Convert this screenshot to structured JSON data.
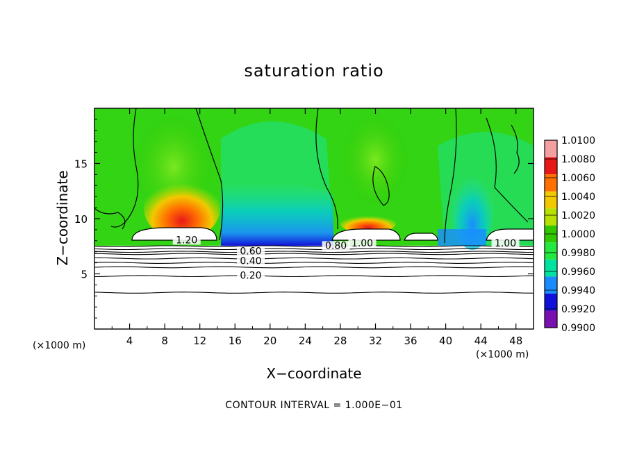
{
  "chart_data": {
    "type": "heatmap",
    "title": "saturation ratio",
    "xlabel": "X−coordinate",
    "ylabel": "Z−coordinate",
    "x_unit": "(×1000 m)",
    "y_unit": "(×1000 m)",
    "footer": "CONTOUR INTERVAL = 1.000E−01",
    "xlim": [
      0,
      50
    ],
    "ylim": [
      0,
      20
    ],
    "x_ticks": [
      "4",
      "8",
      "12",
      "16",
      "20",
      "24",
      "28",
      "32",
      "36",
      "40",
      "44",
      "48"
    ],
    "y_ticks": [
      "5",
      "10",
      "15"
    ],
    "colorbar": {
      "levels": [
        "1.0100",
        "1.0080",
        "1.0060",
        "1.0040",
        "1.0020",
        "1.0000",
        "0.9980",
        "0.9960",
        "0.9940",
        "0.9920",
        "0.9900"
      ],
      "colors": [
        "#f4a0a0",
        "#e81818",
        "#ff7000",
        "#f2c800",
        "#b8e000",
        "#32c800",
        "#22e840",
        "#00e2a0",
        "#1a8cff",
        "#1010d8",
        "#7a10b0"
      ]
    },
    "contour_labels": [
      "1.20",
      "0.60",
      "0.40",
      "0.20",
      "0.80",
      "1.00",
      "1.00"
    ],
    "contour_interval": 0.1,
    "grid": false
  }
}
